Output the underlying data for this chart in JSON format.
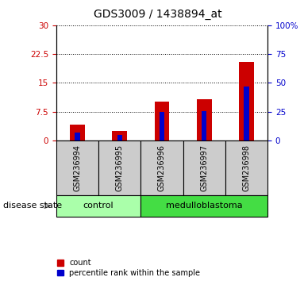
{
  "title": "GDS3009 / 1438894_at",
  "samples": [
    "GSM236994",
    "GSM236995",
    "GSM236996",
    "GSM236997",
    "GSM236998"
  ],
  "count_values": [
    4.2,
    2.5,
    10.2,
    10.8,
    20.5
  ],
  "percentile_values": [
    7.0,
    5.0,
    25.0,
    25.5,
    47.0
  ],
  "left_ylim": [
    0,
    30
  ],
  "right_ylim": [
    0,
    100
  ],
  "left_yticks": [
    0,
    7.5,
    15,
    22.5,
    30
  ],
  "right_yticks": [
    0,
    25,
    50,
    75,
    100
  ],
  "left_ytick_labels": [
    "0",
    "7.5",
    "15",
    "22.5",
    "30"
  ],
  "right_ytick_labels": [
    "0",
    "25",
    "50",
    "75",
    "100%"
  ],
  "bar_color": "#cc0000",
  "percentile_color": "#0000cc",
  "bar_width": 0.35,
  "pct_bar_width": 0.12,
  "groups": [
    {
      "label": "control",
      "n": 2,
      "color": "#aaffaa"
    },
    {
      "label": "medulloblastoma",
      "n": 3,
      "color": "#44dd44"
    }
  ],
  "group_label_prefix": "disease state",
  "plot_bg": "#ffffff",
  "sample_bg": "#cccccc",
  "legend_count_label": "count",
  "legend_percentile_label": "percentile rank within the sample",
  "title_fontsize": 10,
  "tick_fontsize": 7.5,
  "sample_fontsize": 7,
  "group_fontsize": 8,
  "legend_fontsize": 7
}
